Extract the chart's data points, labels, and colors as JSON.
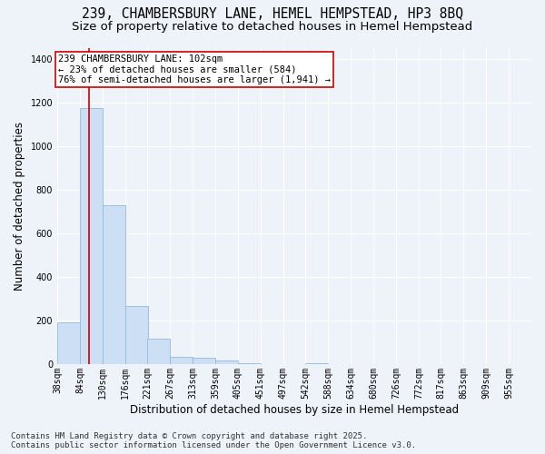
{
  "title_line1": "239, CHAMBERSBURY LANE, HEMEL HEMPSTEAD, HP3 8BQ",
  "title_line2": "Size of property relative to detached houses in Hemel Hempstead",
  "xlabel": "Distribution of detached houses by size in Hemel Hempstead",
  "ylabel": "Number of detached properties",
  "footer": "Contains HM Land Registry data © Crown copyright and database right 2025.\nContains public sector information licensed under the Open Government Licence v3.0.",
  "bin_edges": [
    38,
    84,
    130,
    176,
    221,
    267,
    313,
    359,
    405,
    451,
    497,
    542,
    588,
    634,
    680,
    726,
    772,
    817,
    863,
    909,
    955
  ],
  "bin_labels": [
    "38sqm",
    "84sqm",
    "130sqm",
    "176sqm",
    "221sqm",
    "267sqm",
    "313sqm",
    "359sqm",
    "405sqm",
    "451sqm",
    "497sqm",
    "542sqm",
    "588sqm",
    "634sqm",
    "680sqm",
    "726sqm",
    "772sqm",
    "817sqm",
    "863sqm",
    "909sqm",
    "955sqm"
  ],
  "values": [
    190,
    1175,
    730,
    265,
    115,
    35,
    30,
    15,
    5,
    0,
    0,
    5,
    0,
    0,
    0,
    0,
    0,
    0,
    0,
    0
  ],
  "bar_color": "#ccdff5",
  "bar_edge_color": "#94bcd8",
  "property_line_x": 102,
  "property_line_color": "#cc0000",
  "annotation_text": "239 CHAMBERSBURY LANE: 102sqm\n← 23% of detached houses are smaller (584)\n76% of semi-detached houses are larger (1,941) →",
  "annotation_box_facecolor": "white",
  "annotation_box_edgecolor": "#cc0000",
  "ylim": [
    0,
    1450
  ],
  "yticks": [
    0,
    200,
    400,
    600,
    800,
    1000,
    1200,
    1400
  ],
  "background_color": "#eef2f9",
  "plot_background_color": "#eef2f9",
  "grid_color": "white",
  "title1_fontsize": 10.5,
  "title2_fontsize": 9.5,
  "axis_label_fontsize": 8.5,
  "tick_fontsize": 7,
  "annotation_fontsize": 7.5,
  "footer_fontsize": 6.5
}
